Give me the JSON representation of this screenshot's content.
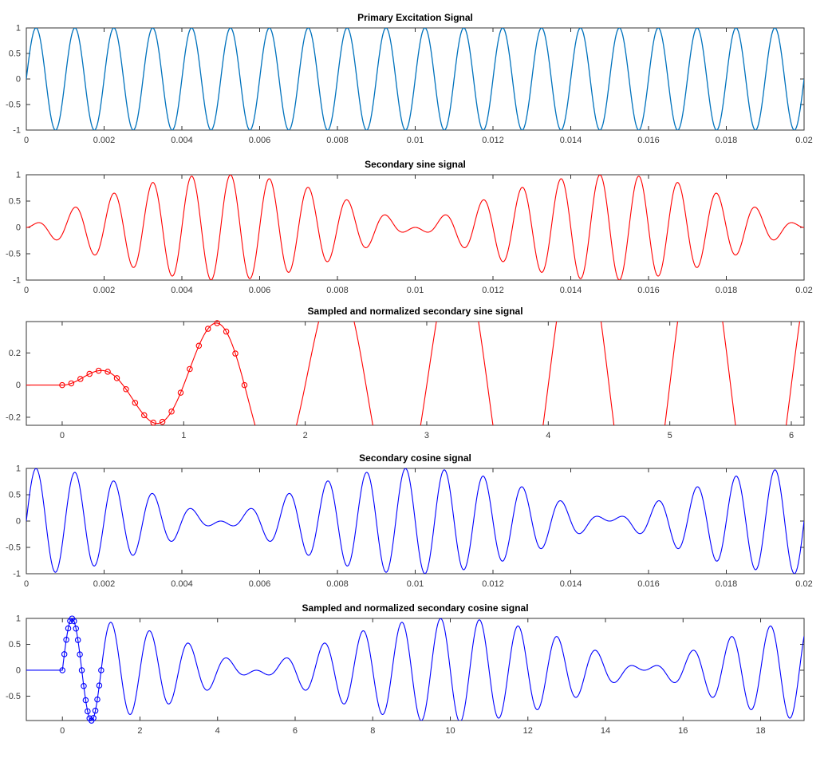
{
  "figure": {
    "background": "#ffffff",
    "axis_color": "#333333",
    "tick_label_color": "#3a3a3a",
    "title_color": "#000000"
  },
  "chart_data": [
    {
      "type": "line",
      "title": "Primary Excitation Signal",
      "line_color": "#0072BD",
      "xlim": [
        0,
        0.02
      ],
      "ylim": [
        -1,
        1
      ],
      "xticks": [
        0,
        0.002,
        0.004,
        0.006,
        0.008,
        0.01,
        0.012,
        0.014,
        0.016,
        0.018,
        0.02
      ],
      "xtick_labels": [
        "0",
        "0.002",
        "0.004",
        "0.006",
        "0.008",
        "0.01",
        "0.012",
        "0.014",
        "0.016",
        "0.018",
        "0.02"
      ],
      "yticks": [
        1,
        0.5,
        0,
        -0.5,
        -1
      ],
      "ytick_labels": [
        "1",
        "0.5",
        "0",
        "-0.5",
        "-1"
      ],
      "grid": false,
      "legend": null,
      "signal": {
        "formula": "sin(2*pi*1000*t)",
        "carrier_hz": 1000,
        "envelope": "none",
        "envelope_hz": 0,
        "domain": [
          0,
          0.02
        ]
      }
    },
    {
      "type": "line",
      "title": "Secondary sine signal",
      "line_color": "#ff0000",
      "xlim": [
        0,
        0.02
      ],
      "ylim": [
        -1,
        1
      ],
      "xticks": [
        0,
        0.002,
        0.004,
        0.006,
        0.008,
        0.01,
        0.012,
        0.014,
        0.016,
        0.018,
        0.02
      ],
      "xtick_labels": [
        "0",
        "0.002",
        "0.004",
        "0.006",
        "0.008",
        "0.01",
        "0.012",
        "0.014",
        "0.016",
        "0.018",
        "0.02"
      ],
      "yticks": [
        1,
        0.5,
        0,
        -0.5,
        -1
      ],
      "ytick_labels": [
        "1",
        "0.5",
        "0",
        "-0.5",
        "-1"
      ],
      "grid": false,
      "legend": null,
      "signal": {
        "formula": "sin(2*pi*1000*t)*sin(2*pi*50*t)",
        "carrier_hz": 1000,
        "envelope": "sin",
        "envelope_hz": 50,
        "domain": [
          0,
          0.02
        ]
      }
    },
    {
      "type": "line",
      "title": "Sampled and normalized secondary sine signal",
      "line_color": "#ff0000",
      "xlim": [
        -0.295,
        6.105
      ],
      "ylim": [
        -0.25,
        0.395
      ],
      "xticks": [
        0,
        1,
        2,
        3,
        4,
        5,
        6
      ],
      "xtick_labels": [
        "0",
        "1",
        "2",
        "3",
        "4",
        "5",
        "6"
      ],
      "yticks": [
        0.2,
        0,
        -0.2
      ],
      "ytick_labels": [
        "0.2",
        "0",
        "-0.2"
      ],
      "grid": false,
      "legend": null,
      "signal": {
        "formula": "sin(2*pi*x)*sin(0.1*pi*x), 0 for x<0",
        "carrier_hz": 1,
        "envelope": "sin",
        "envelope_hz": 0.05,
        "domain": [
          0,
          6.105
        ]
      },
      "samples": [
        [
          0,
          0
        ],
        [
          0.075,
          0.0107
        ],
        [
          0.15,
          0.0381
        ],
        [
          0.225,
          0.0698
        ],
        [
          0.3,
          0.0895
        ],
        [
          0.375,
          0.0831
        ],
        [
          0.45,
          0.0435
        ],
        [
          0.525,
          -0.0256
        ],
        [
          0.6,
          -0.1102
        ],
        [
          0.675,
          -0.1876
        ],
        [
          0.75,
          -0.2334
        ],
        [
          0.825,
          -0.2284
        ],
        [
          0.9,
          -0.1641
        ],
        [
          0.975,
          -0.0471
        ],
        [
          1.05,
          0.1001
        ],
        [
          1.125,
          0.2448
        ],
        [
          1.2,
          0.3501
        ],
        [
          1.275,
          0.3851
        ],
        [
          1.35,
          0.3327
        ],
        [
          1.425,
          0.1963
        ],
        [
          1.5,
          0
        ]
      ]
    },
    {
      "type": "line",
      "title": "Secondary cosine signal",
      "line_color": "#0000ff",
      "xlim": [
        0,
        0.02
      ],
      "ylim": [
        -1,
        1
      ],
      "xticks": [
        0,
        0.002,
        0.004,
        0.006,
        0.008,
        0.01,
        0.012,
        0.014,
        0.016,
        0.018,
        0.02
      ],
      "xtick_labels": [
        "0",
        "0.002",
        "0.004",
        "0.006",
        "0.008",
        "0.01",
        "0.012",
        "0.014",
        "0.016",
        "0.018",
        "0.02"
      ],
      "yticks": [
        1,
        0.5,
        0,
        -0.5,
        -1
      ],
      "ytick_labels": [
        "1",
        "0.5",
        "0",
        "-0.5",
        "-1"
      ],
      "grid": false,
      "legend": null,
      "signal": {
        "formula": "sin(2*pi*1000*t)*cos(2*pi*50*t)",
        "carrier_hz": 1000,
        "envelope": "cos",
        "envelope_hz": 50,
        "domain": [
          0,
          0.02
        ]
      }
    },
    {
      "type": "line",
      "title": "Sampled and normalized secondary cosine signal",
      "line_color": "#0000ff",
      "xlim": [
        -0.93,
        19.12
      ],
      "ylim": [
        -0.97,
        1
      ],
      "xticks": [
        0,
        2,
        4,
        6,
        8,
        10,
        12,
        14,
        16,
        18
      ],
      "xtick_labels": [
        "0",
        "2",
        "4",
        "6",
        "8",
        "10",
        "12",
        "14",
        "16",
        "18"
      ],
      "yticks": [
        1,
        0.5,
        0,
        -0.5
      ],
      "ytick_labels": [
        "1",
        "0.5",
        "0",
        "-0.5"
      ],
      "grid": false,
      "legend": null,
      "signal": {
        "formula": "sin(2*pi*x)*cos(0.1*pi*x), 0 for x<0",
        "carrier_hz": 1,
        "envelope": "cos",
        "envelope_hz": 0.05,
        "domain": [
          0,
          19.12
        ]
      },
      "samples": [
        [
          0,
          0
        ],
        [
          0.05,
          0.3089
        ],
        [
          0.1,
          0.5875
        ],
        [
          0.15,
          0.8081
        ],
        [
          0.2,
          0.9492
        ],
        [
          0.25,
          0.9969
        ],
        [
          0.3,
          0.9469
        ],
        [
          0.35,
          0.8041
        ],
        [
          0.4,
          0.5832
        ],
        [
          0.45,
          0.3059
        ],
        [
          0.5,
          0
        ],
        [
          0.55,
          -0.3044
        ],
        [
          0.6,
          -0.5774
        ],
        [
          0.65,
          -0.7922
        ],
        [
          0.7,
          -0.9282
        ],
        [
          0.75,
          -0.9724
        ],
        [
          0.8,
          -0.9212
        ],
        [
          0.85,
          -0.7803
        ],
        [
          0.9,
          -0.5645
        ],
        [
          0.95,
          -0.2953
        ],
        [
          1,
          0
        ]
      ]
    }
  ]
}
